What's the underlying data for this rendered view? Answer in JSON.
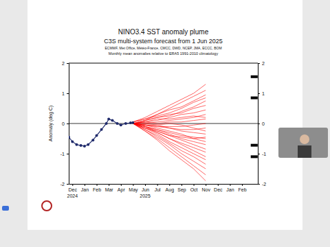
{
  "chart_data": {
    "type": "line",
    "title": "NINO3.4 SST anomaly plume",
    "subtitle": [
      "C3S multi-system forecast from 1 Jun 2025",
      "ECMWF, Met Office, Météo-France, CMCC, DWD, NCEP, JMA, ECCC, BOM",
      "Monthly mean anomalies relative to ERA5 1991-2010 climatology"
    ],
    "y_label": "Anomaly (deg C)",
    "xlim": [
      -0.3,
      15.3
    ],
    "xticks": [
      {
        "value": 0,
        "label": "Dec"
      },
      {
        "value": 1,
        "label": "Jan"
      },
      {
        "value": 2,
        "label": "Feb"
      },
      {
        "value": 3,
        "label": "Mar"
      },
      {
        "value": 4,
        "label": "Apr"
      },
      {
        "value": 5,
        "label": "May"
      },
      {
        "value": 6,
        "label": "Jun"
      },
      {
        "value": 7,
        "label": "Jul"
      },
      {
        "value": 8,
        "label": "Aug"
      },
      {
        "value": 9,
        "label": "Sep"
      },
      {
        "value": 10,
        "label": "Oct"
      },
      {
        "value": 11,
        "label": "Nov"
      },
      {
        "value": 12,
        "label": "Dec"
      },
      {
        "value": 13,
        "label": "Jan"
      },
      {
        "value": 14,
        "label": "Feb"
      }
    ],
    "annotations": [
      {
        "text": "2024",
        "x": 0
      },
      {
        "text": "2025",
        "x": 6
      }
    ],
    "ylim": [
      -2,
      2
    ],
    "yticks": [
      -2,
      -1,
      0,
      1,
      2
    ],
    "hline": 0,
    "series": [
      {
        "type": "line",
        "marker": "circle",
        "color": "#1f2a6b",
        "x": [
          -0.3,
          0.0,
          0.35,
          0.7,
          1.0,
          1.3,
          1.7,
          2.0,
          2.4,
          2.8,
          3.0,
          3.3,
          3.7,
          4.0,
          4.4,
          4.8,
          5.0
        ],
        "values": [
          -0.45,
          -0.6,
          -0.7,
          -0.73,
          -0.75,
          -0.7,
          -0.55,
          -0.4,
          -0.2,
          0.0,
          0.15,
          0.1,
          0.0,
          -0.05,
          0.0,
          0.02,
          0.03
        ]
      },
      {
        "color": "#ff0000",
        "x": [
          5,
          6,
          7,
          8,
          9,
          10,
          11
        ],
        "values": [
          0.05,
          0.2,
          0.4,
          0.6,
          0.8,
          1.0,
          1.3
        ]
      },
      {
        "color": "#ff0000",
        "x": [
          5,
          6,
          7,
          8,
          9,
          10,
          11
        ],
        "values": [
          0.0,
          0.1,
          0.3,
          0.5,
          0.7,
          0.9,
          1.1
        ]
      },
      {
        "color": "#ff0000",
        "x": [
          5,
          6,
          7,
          8,
          9,
          10,
          11
        ],
        "values": [
          0.05,
          0.15,
          0.25,
          0.35,
          0.5,
          0.7,
          0.85
        ]
      },
      {
        "color": "#ff0000",
        "x": [
          5,
          6,
          7,
          8,
          9,
          10,
          11
        ],
        "values": [
          0.0,
          0.1,
          0.2,
          0.3,
          0.35,
          0.5,
          0.6
        ]
      },
      {
        "color": "#ff0000",
        "x": [
          5,
          6,
          7,
          8,
          9,
          10,
          11
        ],
        "values": [
          0.0,
          0.05,
          0.1,
          0.2,
          0.3,
          0.35,
          0.45
        ]
      },
      {
        "color": "#ff0000",
        "x": [
          5,
          6,
          7,
          8,
          9,
          10,
          11
        ],
        "values": [
          0.0,
          0.0,
          0.05,
          0.1,
          0.15,
          0.2,
          0.3
        ]
      },
      {
        "color": "#ff0000",
        "x": [
          5,
          6,
          7,
          8,
          9,
          10,
          11
        ],
        "values": [
          0.0,
          0.05,
          0.0,
          0.05,
          0.05,
          0.1,
          0.15
        ]
      },
      {
        "color": "#ff0000",
        "x": [
          5,
          6,
          7,
          8,
          9,
          10,
          11
        ],
        "values": [
          0.0,
          -0.05,
          -0.1,
          -0.1,
          -0.1,
          -0.05,
          0.0
        ]
      },
      {
        "color": "#ff0000",
        "x": [
          5,
          6,
          7,
          8,
          9,
          10,
          11
        ],
        "values": [
          0.0,
          -0.05,
          -0.1,
          -0.15,
          -0.2,
          -0.2,
          -0.15
        ]
      },
      {
        "color": "#ff0000",
        "x": [
          5,
          6,
          7,
          8,
          9,
          10,
          11
        ],
        "values": [
          0.0,
          0.0,
          -0.05,
          -0.15,
          -0.25,
          -0.3,
          -0.35
        ]
      },
      {
        "color": "#ff0000",
        "x": [
          5,
          6,
          7,
          8,
          9,
          10,
          11
        ],
        "values": [
          0.0,
          -0.1,
          -0.2,
          -0.3,
          -0.4,
          -0.45,
          -0.5
        ]
      },
      {
        "color": "#ff0000",
        "x": [
          5,
          6,
          7,
          8,
          9,
          10,
          11
        ],
        "values": [
          0.0,
          -0.05,
          -0.15,
          -0.25,
          -0.35,
          -0.5,
          -0.6
        ]
      },
      {
        "color": "#ff0000",
        "x": [
          5,
          6,
          7,
          8,
          9,
          10,
          11
        ],
        "values": [
          0.0,
          -0.1,
          -0.2,
          -0.35,
          -0.5,
          -0.6,
          -0.7
        ]
      },
      {
        "color": "#ff0000",
        "x": [
          5,
          6,
          7,
          8,
          9,
          10,
          11
        ],
        "values": [
          0.0,
          -0.1,
          -0.25,
          -0.4,
          -0.55,
          -0.7,
          -0.85
        ]
      },
      {
        "color": "#ff0000",
        "x": [
          5,
          6,
          7,
          8,
          9,
          10,
          11
        ],
        "values": [
          0.0,
          -0.15,
          -0.3,
          -0.5,
          -0.65,
          -0.8,
          -0.95
        ]
      },
      {
        "color": "#ff0000",
        "x": [
          5,
          6,
          7,
          8,
          9,
          10,
          11
        ],
        "values": [
          0.0,
          -0.1,
          -0.3,
          -0.5,
          -0.7,
          -0.9,
          -1.1
        ]
      },
      {
        "color": "#ff0000",
        "x": [
          5,
          6,
          7,
          8,
          9,
          10,
          11
        ],
        "values": [
          0.0,
          -0.15,
          -0.35,
          -0.6,
          -0.8,
          -1.0,
          -1.2
        ]
      },
      {
        "color": "#ff0000",
        "x": [
          5,
          6,
          7,
          8,
          9,
          10,
          11
        ],
        "values": [
          0.0,
          -0.2,
          -0.4,
          -0.65,
          -0.9,
          -1.1,
          -1.35
        ]
      },
      {
        "color": "#ff0000",
        "x": [
          5,
          6,
          7,
          8,
          9,
          10,
          11
        ],
        "values": [
          0.0,
          -0.2,
          -0.45,
          -0.7,
          -1.0,
          -1.25,
          -1.5
        ]
      },
      {
        "color": "#ff0000",
        "x": [
          5,
          6,
          7,
          8,
          9,
          10,
          11
        ],
        "values": [
          0.0,
          -0.25,
          -0.5,
          -0.8,
          -1.1,
          -1.4,
          -1.7
        ]
      },
      {
        "color": "#ff0000",
        "x": [
          5,
          6,
          7,
          8,
          9,
          10,
          11
        ],
        "values": [
          0.0,
          -0.25,
          -0.55,
          -0.9,
          -1.2,
          -1.5,
          -1.9
        ]
      },
      {
        "color": "#ff0000",
        "x": [
          5,
          6,
          7,
          8,
          9,
          10,
          11
        ],
        "values": [
          0.05,
          0.15,
          0.3,
          0.45,
          0.55,
          0.75,
          0.95
        ]
      },
      {
        "color": "#ff0000",
        "x": [
          5,
          6,
          7,
          8,
          9,
          10,
          11
        ],
        "values": [
          0.0,
          0.05,
          0.15,
          0.15,
          0.2,
          0.25,
          0.2
        ]
      },
      {
        "color": "#ff0000",
        "x": [
          5,
          6,
          7,
          8,
          9,
          10,
          11
        ],
        "values": [
          0.0,
          -0.05,
          -0.05,
          0.0,
          -0.05,
          -0.15,
          -0.25
        ]
      },
      {
        "color": "#ff0000",
        "x": [
          5,
          6,
          7,
          8,
          9,
          10,
          11
        ],
        "values": [
          0.0,
          -0.15,
          -0.25,
          -0.4,
          -0.45,
          -0.5,
          -0.45
        ]
      },
      {
        "color": "#ff0000",
        "x": [
          5,
          6,
          7,
          8,
          9,
          10,
          11
        ],
        "values": [
          0.0,
          0.1,
          0.2,
          0.25,
          0.4,
          0.55,
          0.75
        ]
      },
      {
        "type": "scatter",
        "marker": "dash",
        "color": "#000000",
        "x": [
          15.0,
          15.0,
          15.0,
          15.0
        ],
        "values": [
          1.55,
          0.85,
          -0.72,
          -1.1
        ]
      }
    ]
  }
}
